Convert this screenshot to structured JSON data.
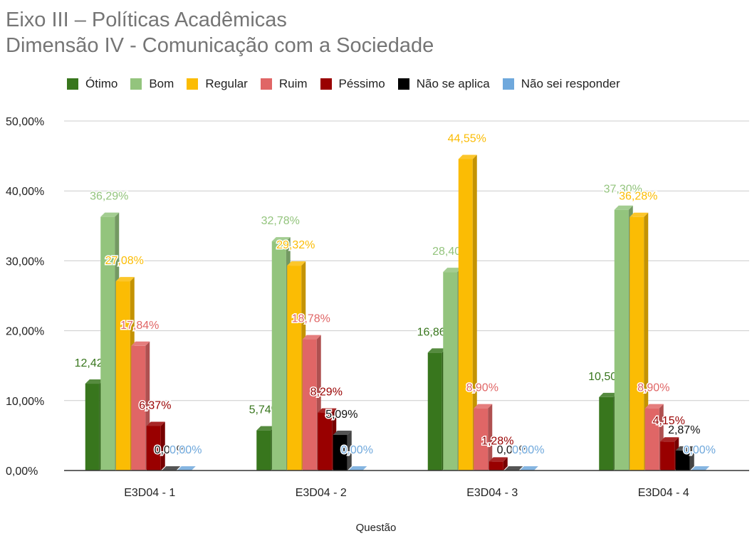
{
  "title": "Eixo III – Políticas Acadêmicas",
  "subtitle": "Dimensão IV - Comunicação com a Sociedade",
  "chart_data": {
    "type": "bar",
    "categories": [
      "E3D04 - 1",
      "E3D04 - 2",
      "E3D04 - 3",
      "E3D04 - 4"
    ],
    "series": [
      {
        "name": "Ótimo",
        "color": "#38761d",
        "values": [
          12.42,
          5.74,
          16.86,
          10.5
        ],
        "labels": [
          "12,42%",
          "5,74%",
          "16,86%",
          "10,50%"
        ]
      },
      {
        "name": "Bom",
        "color": "#93c47d",
        "values": [
          36.29,
          32.78,
          28.4,
          37.3
        ],
        "labels": [
          "36,29%",
          "32,78%",
          "28,40%",
          "37,30%"
        ]
      },
      {
        "name": "Regular",
        "color": "#fbbc04",
        "values": [
          27.08,
          29.32,
          44.55,
          36.28
        ],
        "labels": [
          "27,08%",
          "29,32%",
          "44,55%",
          "36,28%"
        ]
      },
      {
        "name": "Ruim",
        "color": "#e06666",
        "values": [
          17.84,
          18.78,
          8.9,
          8.9
        ],
        "labels": [
          "17,84%",
          "18,78%",
          "8,90%",
          "8,90%"
        ]
      },
      {
        "name": "Péssimo",
        "color": "#990000",
        "values": [
          6.37,
          8.29,
          1.28,
          4.15
        ],
        "labels": [
          "6,37%",
          "8,29%",
          "1,28%",
          "4,15%"
        ]
      },
      {
        "name": "Não se aplica",
        "color": "#000000",
        "values": [
          0.0,
          5.09,
          0.0,
          2.87
        ],
        "labels": [
          "0,00%",
          "5,09%",
          "0,00%",
          "2,87%"
        ]
      },
      {
        "name": "Não sei responder",
        "color": "#6fa8dc",
        "values": [
          0.0,
          0.0,
          0.0,
          0.0
        ],
        "labels": [
          "0,00%",
          "0,00%",
          "0,00%",
          "0,00%"
        ]
      }
    ],
    "ylim": [
      0,
      50
    ],
    "yticks": [
      "0,00%",
      "10,00%",
      "20,00%",
      "30,00%",
      "40,00%",
      "50,00%"
    ],
    "xlabel": "Questão",
    "ylabel": "",
    "grid": true,
    "legend_position": "top",
    "style": "3d-bar with data labels"
  }
}
